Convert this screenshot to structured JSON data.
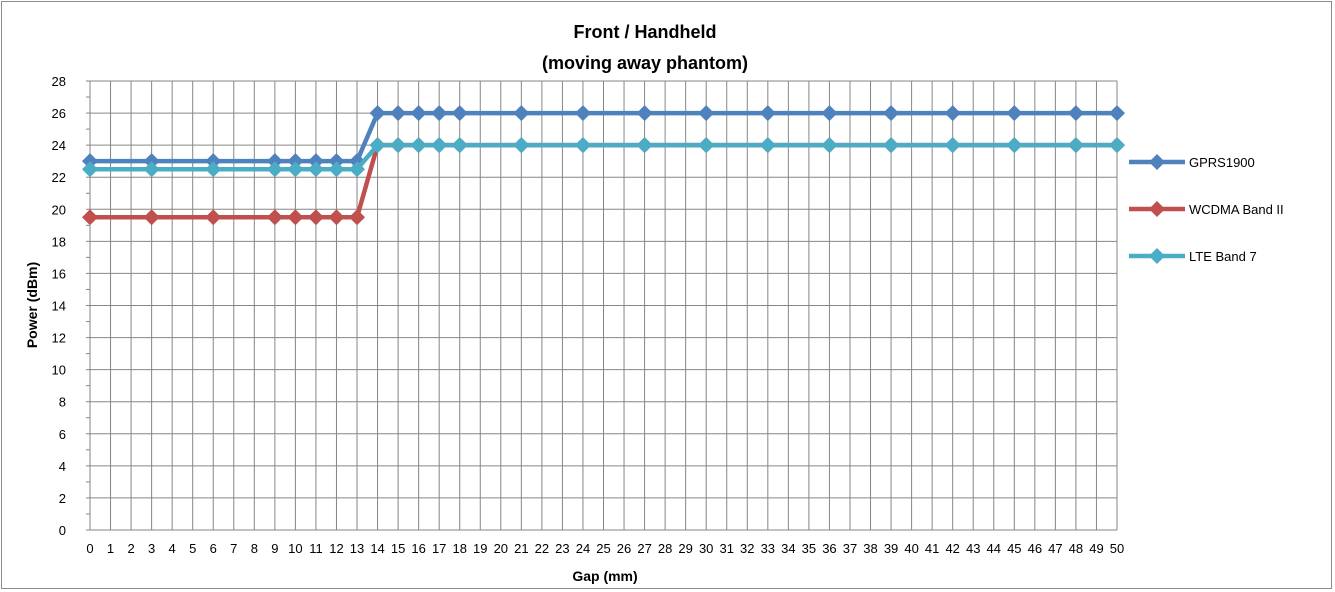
{
  "chart_data": {
    "type": "line",
    "title": "Front / Handheld",
    "subtitle": "(moving away phantom)",
    "xlabel": "Gap (mm)",
    "ylabel": "Power (dBm)",
    "ylim": [
      0,
      28
    ],
    "yticks": [
      0,
      2,
      4,
      6,
      8,
      10,
      12,
      14,
      16,
      18,
      20,
      22,
      24,
      26,
      28
    ],
    "xticks": [
      0,
      1,
      2,
      3,
      4,
      5,
      6,
      7,
      8,
      9,
      10,
      11,
      12,
      13,
      14,
      15,
      16,
      17,
      18,
      19,
      20,
      21,
      22,
      23,
      24,
      25,
      26,
      27,
      28,
      29,
      30,
      31,
      32,
      33,
      34,
      35,
      36,
      37,
      38,
      39,
      40,
      41,
      42,
      43,
      44,
      45,
      46,
      47,
      48,
      49,
      50
    ],
    "grid": true,
    "legend_position": "right",
    "x": [
      0,
      3,
      6,
      9,
      10,
      11,
      12,
      13,
      14,
      15,
      16,
      17,
      18,
      21,
      24,
      27,
      30,
      33,
      36,
      39,
      42,
      45,
      48,
      50
    ],
    "series": [
      {
        "name": "GPRS1900",
        "color": "#4F81BD",
        "values": [
          23,
          23,
          23,
          23,
          23,
          23,
          23,
          23,
          26,
          26,
          26,
          26,
          26,
          26,
          26,
          26,
          26,
          26,
          26,
          26,
          26,
          26,
          26,
          26
        ]
      },
      {
        "name": "WCDMA Band II",
        "color": "#C0504D",
        "values": [
          19.5,
          19.5,
          19.5,
          19.5,
          19.5,
          19.5,
          19.5,
          19.5,
          24,
          24,
          24,
          24,
          24,
          24,
          24,
          24,
          24,
          24,
          24,
          24,
          24,
          24,
          24,
          24
        ]
      },
      {
        "name": "LTE Band 7",
        "color": "#4BACC6",
        "values": [
          22.5,
          22.5,
          22.5,
          22.5,
          22.5,
          22.5,
          22.5,
          22.5,
          24,
          24,
          24,
          24,
          24,
          24,
          24,
          24,
          24,
          24,
          24,
          24,
          24,
          24,
          24,
          24
        ]
      }
    ]
  }
}
